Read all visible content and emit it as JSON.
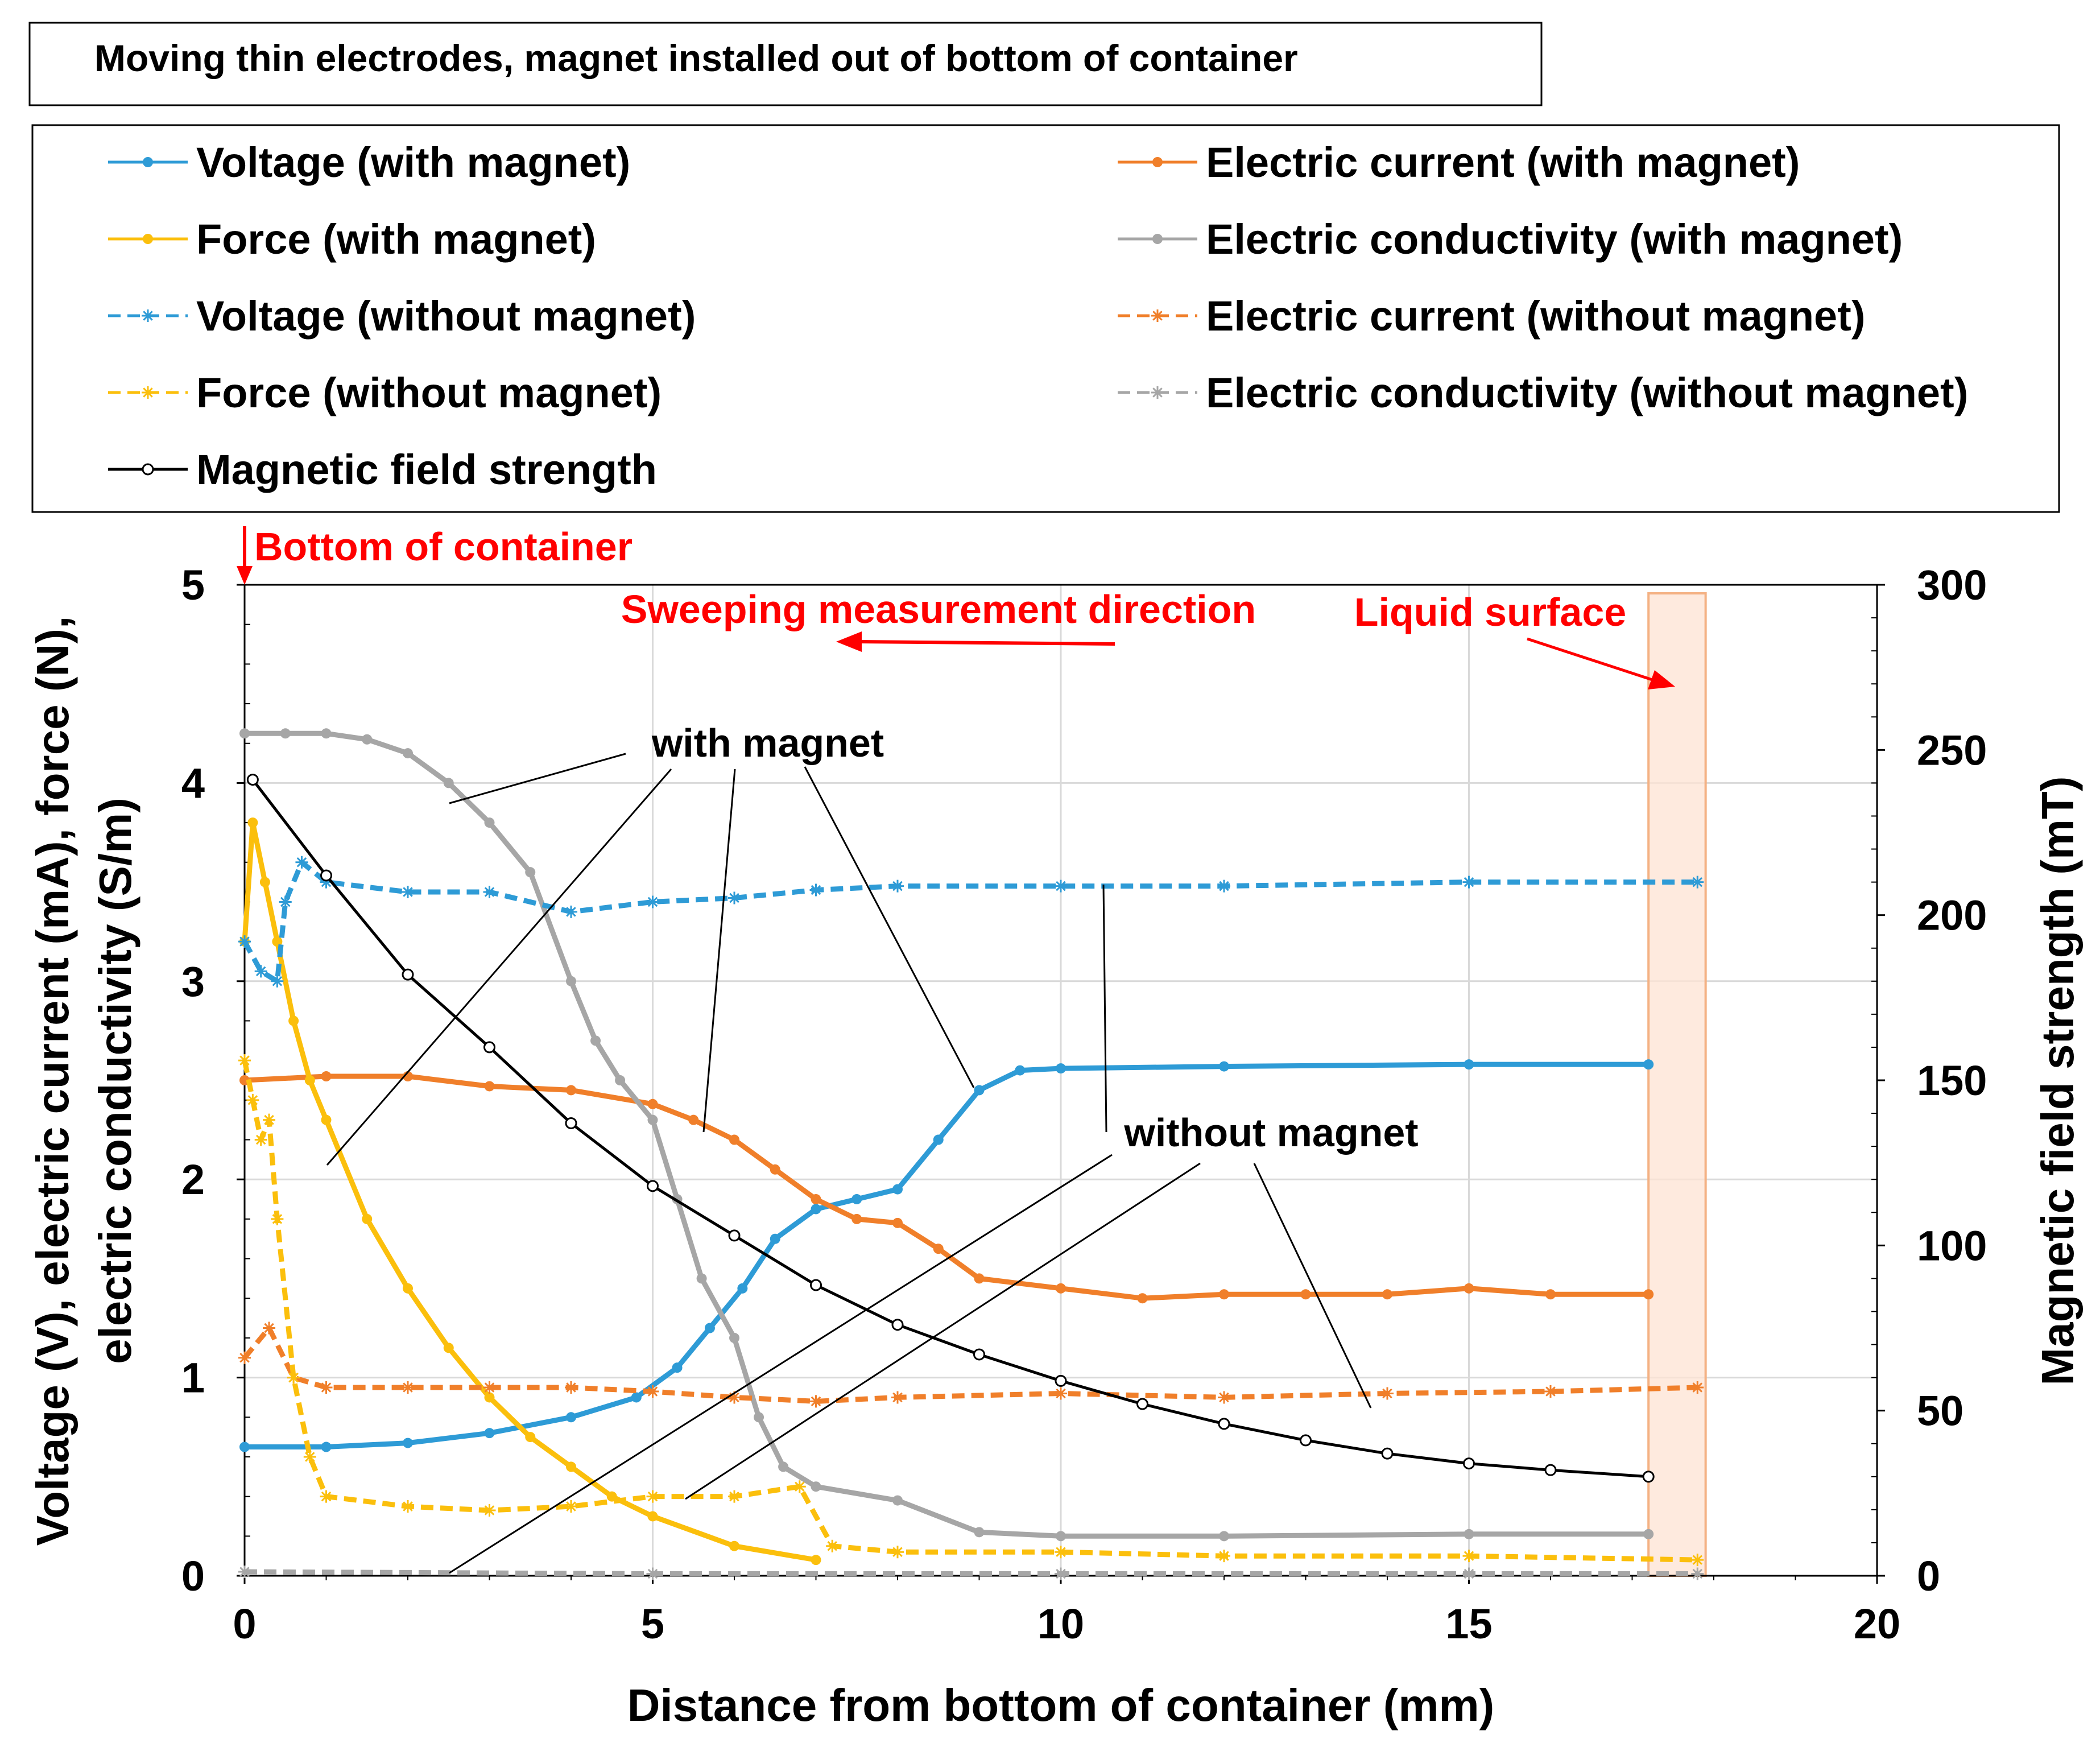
{
  "chart_data": {
    "type": "line",
    "title": "Moving thin electrodes, magnet installed out of bottom of container",
    "xlabel": "Distance from bottom of container   (mm)",
    "ylabel_left_line1": "Voltage  (V),  electric current  (mA),  force  (N),",
    "ylabel_left_line2": "electric conductivity  (S/m)",
    "ylabel_right": "Magnetic field strength   (mT)",
    "xlim": [
      0,
      20
    ],
    "ylim_left": [
      0,
      5
    ],
    "ylim_right": [
      0,
      300
    ],
    "x_ticks": [
      "0",
      "5",
      "10",
      "15",
      "20"
    ],
    "y_left_ticks": [
      "0",
      "1",
      "2",
      "3",
      "4",
      "5"
    ],
    "y_right_ticks": [
      "0",
      "50",
      "100",
      "150",
      "200",
      "250",
      "300"
    ],
    "grid": true,
    "series": [
      {
        "name": "Voltage (with magnet)",
        "color": "#2e9bd6",
        "style": "solid-dot",
        "axis": "left",
        "points": [
          [
            0,
            0.65
          ],
          [
            1,
            0.65
          ],
          [
            2,
            0.67
          ],
          [
            3,
            0.72
          ],
          [
            4,
            0.8
          ],
          [
            4.8,
            0.9
          ],
          [
            5.3,
            1.05
          ],
          [
            5.7,
            1.25
          ],
          [
            6.1,
            1.45
          ],
          [
            6.5,
            1.7
          ],
          [
            7,
            1.85
          ],
          [
            7.5,
            1.9
          ],
          [
            8,
            1.95
          ],
          [
            8.5,
            2.2
          ],
          [
            9,
            2.45
          ],
          [
            9.5,
            2.55
          ],
          [
            10,
            2.56
          ],
          [
            12,
            2.57
          ],
          [
            15,
            2.58
          ],
          [
            17.2,
            2.58
          ]
        ]
      },
      {
        "name": "Electric current (with magnet)",
        "color": "#f07f2a",
        "style": "solid-dot",
        "axis": "left",
        "points": [
          [
            0,
            2.5
          ],
          [
            1,
            2.52
          ],
          [
            2,
            2.52
          ],
          [
            3,
            2.47
          ],
          [
            4,
            2.45
          ],
          [
            5,
            2.38
          ],
          [
            5.5,
            2.3
          ],
          [
            6,
            2.2
          ],
          [
            6.5,
            2.05
          ],
          [
            7,
            1.9
          ],
          [
            7.5,
            1.8
          ],
          [
            8,
            1.78
          ],
          [
            8.5,
            1.65
          ],
          [
            9,
            1.5
          ],
          [
            10,
            1.45
          ],
          [
            11,
            1.4
          ],
          [
            12,
            1.42
          ],
          [
            13,
            1.42
          ],
          [
            14,
            1.42
          ],
          [
            15,
            1.45
          ],
          [
            16,
            1.42
          ],
          [
            17.2,
            1.42
          ]
        ]
      },
      {
        "name": "Force (with magnet)",
        "color": "#fbbf0c",
        "style": "solid-dot",
        "axis": "left",
        "points": [
          [
            0,
            3.2
          ],
          [
            0.1,
            3.8
          ],
          [
            0.25,
            3.5
          ],
          [
            0.4,
            3.2
          ],
          [
            0.6,
            2.8
          ],
          [
            0.8,
            2.5
          ],
          [
            1,
            2.3
          ],
          [
            1.5,
            1.8
          ],
          [
            2,
            1.45
          ],
          [
            2.5,
            1.15
          ],
          [
            3,
            0.9
          ],
          [
            3.5,
            0.7
          ],
          [
            4,
            0.55
          ],
          [
            4.5,
            0.4
          ],
          [
            5,
            0.3
          ],
          [
            6,
            0.15
          ],
          [
            7,
            0.08
          ]
        ]
      },
      {
        "name": "Electric conductivity (with magnet)",
        "color": "#a6a6a6",
        "style": "solid-dot",
        "axis": "left",
        "points": [
          [
            0,
            4.25
          ],
          [
            0.5,
            4.25
          ],
          [
            1,
            4.25
          ],
          [
            1.5,
            4.22
          ],
          [
            2,
            4.15
          ],
          [
            2.5,
            4.0
          ],
          [
            3,
            3.8
          ],
          [
            3.5,
            3.55
          ],
          [
            4,
            3.0
          ],
          [
            4.3,
            2.7
          ],
          [
            4.6,
            2.5
          ],
          [
            5,
            2.3
          ],
          [
            5.3,
            1.9
          ],
          [
            5.6,
            1.5
          ],
          [
            6,
            1.2
          ],
          [
            6.3,
            0.8
          ],
          [
            6.6,
            0.55
          ],
          [
            7,
            0.45
          ],
          [
            8,
            0.38
          ],
          [
            9,
            0.22
          ],
          [
            10,
            0.2
          ],
          [
            12,
            0.2
          ],
          [
            15,
            0.21
          ],
          [
            17.2,
            0.21
          ]
        ]
      },
      {
        "name": "Voltage (without magnet)",
        "color": "#2e9bd6",
        "style": "dashed-star",
        "axis": "left",
        "points": [
          [
            0,
            3.2
          ],
          [
            0.2,
            3.05
          ],
          [
            0.4,
            3.0
          ],
          [
            0.5,
            3.4
          ],
          [
            0.7,
            3.6
          ],
          [
            1,
            3.5
          ],
          [
            2,
            3.45
          ],
          [
            3,
            3.45
          ],
          [
            4,
            3.35
          ],
          [
            5,
            3.4
          ],
          [
            6,
            3.42
          ],
          [
            7,
            3.46
          ],
          [
            8,
            3.48
          ],
          [
            10,
            3.48
          ],
          [
            12,
            3.48
          ],
          [
            15,
            3.5
          ],
          [
            17.8,
            3.5
          ]
        ]
      },
      {
        "name": "Electric current (without magnet)",
        "color": "#f07f2a",
        "style": "dashed-star",
        "axis": "left",
        "points": [
          [
            0,
            1.1
          ],
          [
            0.3,
            1.25
          ],
          [
            0.6,
            1.0
          ],
          [
            1,
            0.95
          ],
          [
            2,
            0.95
          ],
          [
            3,
            0.95
          ],
          [
            4,
            0.95
          ],
          [
            5,
            0.93
          ],
          [
            6,
            0.9
          ],
          [
            7,
            0.88
          ],
          [
            8,
            0.9
          ],
          [
            10,
            0.92
          ],
          [
            12,
            0.9
          ],
          [
            14,
            0.92
          ],
          [
            16,
            0.93
          ],
          [
            17.8,
            0.95
          ]
        ]
      },
      {
        "name": "Force (without magnet)",
        "color": "#fbbf0c",
        "style": "dashed-star",
        "axis": "left",
        "points": [
          [
            0,
            2.6
          ],
          [
            0.1,
            2.4
          ],
          [
            0.2,
            2.2
          ],
          [
            0.3,
            2.3
          ],
          [
            0.4,
            1.8
          ],
          [
            0.6,
            1.0
          ],
          [
            0.8,
            0.6
          ],
          [
            1,
            0.4
          ],
          [
            2,
            0.35
          ],
          [
            3,
            0.33
          ],
          [
            4,
            0.35
          ],
          [
            5,
            0.4
          ],
          [
            6,
            0.4
          ],
          [
            6.8,
            0.45
          ],
          [
            7.2,
            0.15
          ],
          [
            8,
            0.12
          ],
          [
            10,
            0.12
          ],
          [
            12,
            0.1
          ],
          [
            15,
            0.1
          ],
          [
            17.8,
            0.08
          ]
        ]
      },
      {
        "name": "Electric conductivity (without magnet)",
        "color": "#a6a6a6",
        "style": "dashed-star",
        "axis": "left",
        "points": [
          [
            0,
            0.02
          ],
          [
            5,
            0.01
          ],
          [
            10,
            0.01
          ],
          [
            15,
            0.01
          ],
          [
            17.8,
            0.01
          ]
        ]
      },
      {
        "name": "Magnetic field strength",
        "color": "#000000",
        "style": "solid-circle",
        "axis": "right",
        "points": [
          [
            0.1,
            241
          ],
          [
            1,
            212
          ],
          [
            2,
            182
          ],
          [
            3,
            160
          ],
          [
            4,
            137
          ],
          [
            5,
            118
          ],
          [
            6,
            103
          ],
          [
            7,
            88
          ],
          [
            8,
            76
          ],
          [
            9,
            67
          ],
          [
            10,
            59
          ],
          [
            11,
            52
          ],
          [
            12,
            46
          ],
          [
            13,
            41
          ],
          [
            14,
            37
          ],
          [
            15,
            34
          ],
          [
            16,
            32
          ],
          [
            17.2,
            30
          ]
        ]
      }
    ],
    "annotations": {
      "bottom_of_container": "Bottom of container",
      "sweeping": "Sweeping measurement direction",
      "liquid_surface": "Liquid surface",
      "with_magnet": "with magnet",
      "without_magnet": "without magnet"
    },
    "shaded_region_x": [
      17.2,
      17.9
    ]
  }
}
